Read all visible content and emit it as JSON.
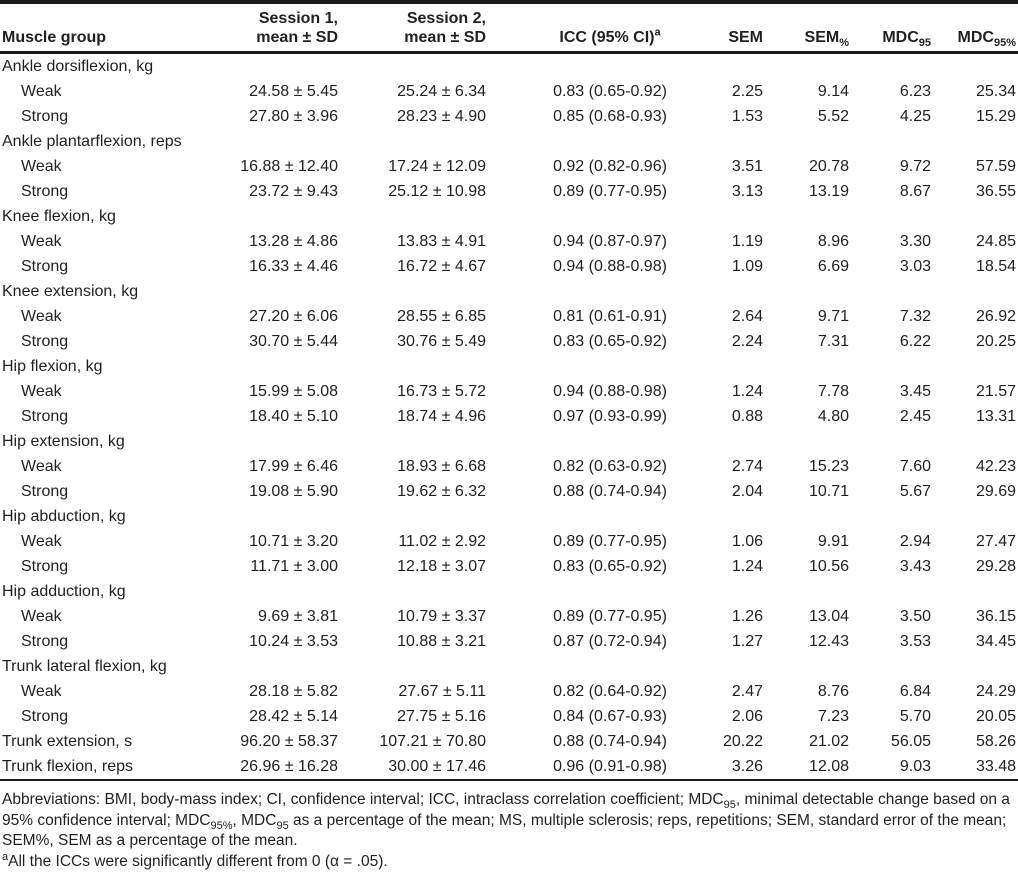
{
  "table": {
    "columns": {
      "muscle_group": "Muscle group",
      "session1_line1": "Session 1,",
      "session1_line2": "mean ± SD",
      "session2_line1": "Session 2,",
      "session2_line2": "mean ± SD",
      "icc_label": "ICC (95% CI)",
      "icc_sup": "a",
      "sem": "SEM",
      "sem_pct_base": "SEM",
      "sem_pct_sub": "%",
      "mdc95_base": "MDC",
      "mdc95_sub": "95",
      "mdc95pct_base": "MDC",
      "mdc95pct_sub": "95%"
    },
    "rows": [
      {
        "label": "Ankle dorsiflexion, kg",
        "indent": false,
        "cells": []
      },
      {
        "label": "Weak",
        "indent": true,
        "cells": [
          "24.58 ± 5.45",
          "25.24 ± 6.34",
          "0.83 (0.65-0.92)",
          "2.25",
          "9.14",
          "6.23",
          "25.34"
        ]
      },
      {
        "label": "Strong",
        "indent": true,
        "cells": [
          "27.80 ± 3.96",
          "28.23 ± 4.90",
          "0.85 (0.68-0.93)",
          "1.53",
          "5.52",
          "4.25",
          "15.29"
        ]
      },
      {
        "label": "Ankle plantarflexion, reps",
        "indent": false,
        "cells": []
      },
      {
        "label": "Weak",
        "indent": true,
        "cells": [
          "16.88 ± 12.40",
          "17.24 ± 12.09",
          "0.92 (0.82-0.96)",
          "3.51",
          "20.78",
          "9.72",
          "57.59"
        ]
      },
      {
        "label": "Strong",
        "indent": true,
        "cells": [
          "23.72 ± 9.43",
          "25.12 ± 10.98",
          "0.89 (0.77-0.95)",
          "3.13",
          "13.19",
          "8.67",
          "36.55"
        ]
      },
      {
        "label": "Knee flexion, kg",
        "indent": false,
        "cells": []
      },
      {
        "label": "Weak",
        "indent": true,
        "cells": [
          "13.28 ± 4.86",
          "13.83 ± 4.91",
          "0.94 (0.87-0.97)",
          "1.19",
          "8.96",
          "3.30",
          "24.85"
        ]
      },
      {
        "label": "Strong",
        "indent": true,
        "cells": [
          "16.33 ± 4.46",
          "16.72 ± 4.67",
          "0.94 (0.88-0.98)",
          "1.09",
          "6.69",
          "3.03",
          "18.54"
        ]
      },
      {
        "label": "Knee extension, kg",
        "indent": false,
        "cells": []
      },
      {
        "label": "Weak",
        "indent": true,
        "cells": [
          "27.20 ± 6.06",
          "28.55 ± 6.85",
          "0.81 (0.61-0.91)",
          "2.64",
          "9.71",
          "7.32",
          "26.92"
        ]
      },
      {
        "label": "Strong",
        "indent": true,
        "cells": [
          "30.70 ± 5.44",
          "30.76 ± 5.49",
          "0.83 (0.65-0.92)",
          "2.24",
          "7.31",
          "6.22",
          "20.25"
        ]
      },
      {
        "label": "Hip flexion, kg",
        "indent": false,
        "cells": []
      },
      {
        "label": "Weak",
        "indent": true,
        "cells": [
          "15.99 ± 5.08",
          "16.73 ± 5.72",
          "0.94 (0.88-0.98)",
          "1.24",
          "7.78",
          "3.45",
          "21.57"
        ]
      },
      {
        "label": "Strong",
        "indent": true,
        "cells": [
          "18.40 ± 5.10",
          "18.74 ± 4.96",
          "0.97 (0.93-0.99)",
          "0.88",
          "4.80",
          "2.45",
          "13.31"
        ]
      },
      {
        "label": "Hip extension, kg",
        "indent": false,
        "cells": []
      },
      {
        "label": "Weak",
        "indent": true,
        "cells": [
          "17.99 ± 6.46",
          "18.93 ± 6.68",
          "0.82 (0.63-0.92)",
          "2.74",
          "15.23",
          "7.60",
          "42.23"
        ]
      },
      {
        "label": "Strong",
        "indent": true,
        "cells": [
          "19.08 ± 5.90",
          "19.62 ± 6.32",
          "0.88 (0.74-0.94)",
          "2.04",
          "10.71",
          "5.67",
          "29.69"
        ]
      },
      {
        "label": "Hip abduction, kg",
        "indent": false,
        "cells": []
      },
      {
        "label": "Weak",
        "indent": true,
        "cells": [
          "10.71 ± 3.20",
          "11.02 ± 2.92",
          "0.89 (0.77-0.95)",
          "1.06",
          "9.91",
          "2.94",
          "27.47"
        ]
      },
      {
        "label": "Strong",
        "indent": true,
        "cells": [
          "11.71 ± 3.00",
          "12.18 ± 3.07",
          "0.83 (0.65-0.92)",
          "1.24",
          "10.56",
          "3.43",
          "29.28"
        ]
      },
      {
        "label": "Hip adduction, kg",
        "indent": false,
        "cells": []
      },
      {
        "label": "Weak",
        "indent": true,
        "cells": [
          "9.69 ± 3.81",
          "10.79 ± 3.37",
          "0.89 (0.77-0.95)",
          "1.26",
          "13.04",
          "3.50",
          "36.15"
        ]
      },
      {
        "label": "Strong",
        "indent": true,
        "cells": [
          "10.24 ± 3.53",
          "10.88 ± 3.21",
          "0.87 (0.72-0.94)",
          "1.27",
          "12.43",
          "3.53",
          "34.45"
        ]
      },
      {
        "label": "Trunk lateral flexion, kg",
        "indent": false,
        "cells": []
      },
      {
        "label": "Weak",
        "indent": true,
        "cells": [
          "28.18 ± 5.82",
          "27.67 ± 5.11",
          "0.82 (0.64-0.92)",
          "2.47",
          "8.76",
          "6.84",
          "24.29"
        ]
      },
      {
        "label": "Strong",
        "indent": true,
        "cells": [
          "28.42 ± 5.14",
          "27.75 ± 5.16",
          "0.84 (0.67-0.93)",
          "2.06",
          "7.23",
          "5.70",
          "20.05"
        ]
      },
      {
        "label": "Trunk extension, s",
        "indent": false,
        "cells": [
          "96.20 ± 58.37",
          "107.21 ± 70.80",
          "0.88 (0.74-0.94)",
          "20.22",
          "21.02",
          "56.05",
          "58.26"
        ]
      },
      {
        "label": "Trunk flexion, reps",
        "indent": false,
        "cells": [
          "26.96 ± 16.28",
          "30.00 ± 17.46",
          "0.96 (0.91-0.98)",
          "3.26",
          "12.08",
          "9.03",
          "33.48"
        ]
      }
    ]
  },
  "footnotes": {
    "abbr": {
      "p1": "Abbreviations: BMI, body-mass index; CI, confidence interval; ICC, intraclass correlation coefficient; MDC",
      "s1": "95",
      "p2": ", minimal detectable change based on a 95% confidence interval; MDC",
      "s2": "95%",
      "p3": ", MDC",
      "s3": "95",
      "p4": " as a percentage of the mean; MS, multiple sclerosis; reps, repetitions; SEM, standard error of the mean; SEM%, SEM as a percentage of the mean."
    },
    "icc": {
      "sup": "a",
      "text": "All the ICCs were significantly different from 0 (α = .05)."
    }
  }
}
